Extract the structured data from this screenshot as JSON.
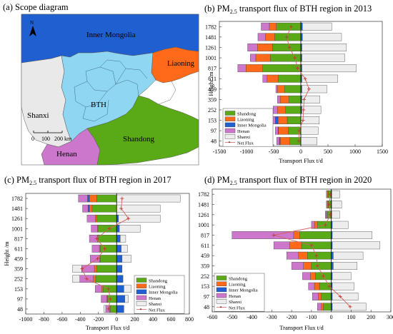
{
  "map_panel": {
    "title": "(a) Scope diagram",
    "north_label": "N",
    "scale_labels": [
      "0",
      "100",
      "200 km"
    ],
    "regions": [
      {
        "name": "Inner Mongolia",
        "color": "#1f5fd0"
      },
      {
        "name": "Liaoning",
        "color": "#ff6a1a"
      },
      {
        "name": "BTH",
        "color": "#8fd6f2"
      },
      {
        "name": "Shanxi",
        "color": "#e9e9e9"
      },
      {
        "name": "Henan",
        "color": "#cc77cc"
      },
      {
        "name": "Shandong",
        "color": "#5aaa18"
      }
    ]
  },
  "series_colors": {
    "Shandong": "#5aaa18",
    "Liaoning": "#ff6a1a",
    "Inner Mongolia": "#1f5fd0",
    "Henan": "#cc77cc",
    "Shanxi": "#ededed",
    "Net Flux": "#d96060"
  },
  "chart_data": [
    {
      "type": "bar",
      "orientation": "horizontal",
      "stacked": true,
      "title": "(b) PM2.5 transport flux of BTH region in 2013",
      "title_parts": [
        "(b) PM",
        "2.5",
        " transport flux of BTH region in 2013"
      ],
      "xlabel": "Transport Flux t/d",
      "ylabel": "Height /m",
      "xlim": [
        -1500,
        1500
      ],
      "xticks": [
        -1500,
        -1000,
        -500,
        0,
        500,
        1000,
        1500
      ],
      "categories": [
        "48",
        "97",
        "153",
        "252",
        "359",
        "459",
        "611",
        "817",
        "1001",
        "1261",
        "1481",
        "1782"
      ],
      "series": [
        {
          "name": "Shandong",
          "values": [
            -200,
            -230,
            -250,
            -280,
            -220,
            -300,
            -420,
            -700,
            -560,
            -520,
            -480,
            -450
          ]
        },
        {
          "name": "Liaoning",
          "values": [
            -180,
            -180,
            -170,
            -150,
            -160,
            -130,
            -200,
            -310,
            -270,
            -280,
            -170,
            -130
          ]
        },
        {
          "name": "Inner Mongolia",
          "values": [
            -15,
            -10,
            -50,
            20,
            20,
            20,
            20,
            20,
            20,
            20,
            30,
            30
          ]
        },
        {
          "name": "Henan",
          "values": [
            -50,
            -50,
            -90,
            -80,
            -50,
            -30,
            -80,
            -150,
            -100,
            -180,
            -140,
            -150
          ]
        },
        {
          "name": "Shanxi",
          "values": [
            300,
            320,
            340,
            350,
            330,
            460,
            660,
            1000,
            790,
            820,
            720,
            540
          ]
        }
      ],
      "net_flux": [
        -40,
        -30,
        40,
        50,
        60,
        150,
        80,
        -60,
        -110,
        -210,
        -260,
        -180
      ],
      "legend": {
        "placement": "lower-left",
        "entries": [
          "Shandong",
          "Liaoning",
          "Inner Mongolia",
          "Henan",
          "Shanxi",
          "Net Flux"
        ]
      }
    },
    {
      "type": "bar",
      "orientation": "horizontal",
      "stacked": true,
      "title": "(c) PM2.5 transport flux of BTH region in 2017",
      "title_parts": [
        "(c) PM",
        "2.5",
        " transport flux of BTH region in 2017"
      ],
      "xlabel": "Transport Flux t/d",
      "ylabel": "Height /m",
      "xlim": [
        -1000,
        800
      ],
      "xticks": [
        -1000,
        -800,
        -600,
        -400,
        -200,
        0,
        200,
        400,
        600,
        800
      ],
      "categories": [
        "48",
        "97",
        "153",
        "252",
        "359",
        "459",
        "611",
        "817",
        "1001",
        "1261",
        "1481",
        "1782"
      ],
      "series": [
        {
          "name": "Shandong",
          "values": [
            -70,
            -100,
            -150,
            -230,
            -220,
            -180,
            -180,
            -200,
            -200,
            -220,
            -270,
            -220
          ]
        },
        {
          "name": "Liaoning",
          "values": [
            -10,
            -10,
            -15,
            -25,
            -25,
            -10,
            -10,
            -10,
            -10,
            -15,
            -30,
            -80
          ]
        },
        {
          "name": "Inner Mongolia",
          "values": [
            80,
            90,
            80,
            70,
            60,
            60,
            50,
            40,
            30,
            20,
            -15,
            -20
          ]
        },
        {
          "name": "Henan",
          "values": [
            -40,
            -60,
            -70,
            -150,
            -140,
            -100,
            -80,
            -90,
            -70,
            -90,
            -60,
            -100
          ]
        },
        {
          "name": "Shanxi",
          "values": [
            -20,
            40,
            80,
            -80,
            -100,
            100,
            70,
            60,
            230,
            460,
            480,
            700
          ]
        }
      ],
      "net_flux": [
        -90,
        -70,
        -90,
        -330,
        -380,
        -210,
        -130,
        -220,
        -80,
        130,
        50,
        60
      ],
      "legend": {
        "placement": "lower-right",
        "entries": [
          "Shandong",
          "Liaoning",
          "Inner Mongolia",
          "Henan",
          "Shanxi",
          "Net Flux"
        ]
      }
    },
    {
      "type": "bar",
      "orientation": "horizontal",
      "stacked": true,
      "title": "(d) PM2.5 transport flux of BTH region in 2020",
      "title_parts": [
        "(d) PM",
        "2.5",
        " transport flux of BTH region in 2020"
      ],
      "xlabel": "Transport Flux t/d",
      "ylabel": "",
      "xlim": [
        -600,
        300
      ],
      "xticks": [
        -600,
        -500,
        -400,
        -300,
        -200,
        -100,
        0,
        100,
        200,
        300
      ],
      "categories": [
        "48",
        "97",
        "153",
        "252",
        "359",
        "459",
        "611",
        "817",
        "1001",
        "1261",
        "1481",
        "1782"
      ],
      "series": [
        {
          "name": "Shandong",
          "values": [
            -40,
            -50,
            -60,
            -80,
            -100,
            -120,
            -150,
            -160,
            -70,
            -20,
            -15,
            -15
          ]
        },
        {
          "name": "Liaoning",
          "values": [
            -10,
            -15,
            -25,
            -25,
            -40,
            -45,
            -60,
            -30,
            -15,
            -5,
            -5,
            -5
          ]
        },
        {
          "name": "Inner Mongolia",
          "values": [
            5,
            5,
            5,
            5,
            10,
            10,
            5,
            5,
            5,
            2,
            2,
            2
          ]
        },
        {
          "name": "Henan",
          "values": [
            -20,
            -30,
            -30,
            -40,
            -60,
            -60,
            -80,
            -310,
            -15,
            -5,
            -5,
            -5
          ]
        },
        {
          "name": "Shanxi",
          "values": [
            170,
            130,
            110,
            95,
            120,
            150,
            240,
            200,
            80,
            40,
            50,
            40
          ]
        }
      ],
      "net_flux": [
        95,
        45,
        -10,
        -40,
        -70,
        -75,
        -100,
        -290,
        -30,
        -5,
        -10,
        -5
      ],
      "legend": {
        "placement": "lower-left",
        "entries": [
          "Shandong",
          "Liaoning",
          "Inner Mongolia",
          "Henan",
          "Shanxi",
          "Net Flux"
        ]
      }
    }
  ]
}
